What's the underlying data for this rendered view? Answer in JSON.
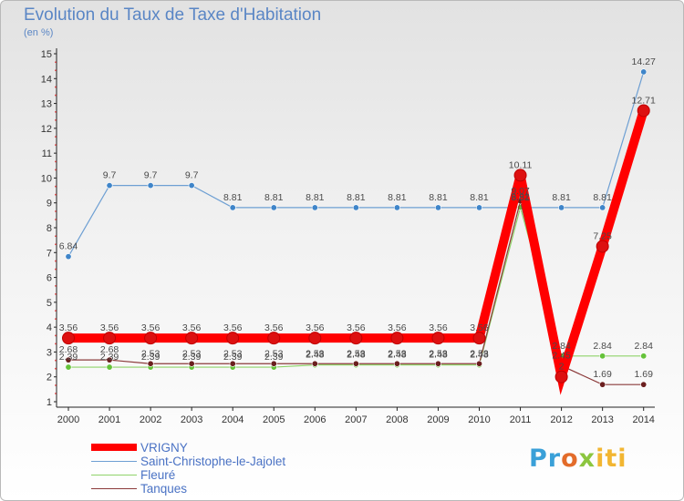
{
  "chart_data": {
    "type": "line",
    "title": "Evolution du Taux de Taxe d'Habitation",
    "unit_label": "(en %)",
    "categories": [
      "2000",
      "2001",
      "2002",
      "2003",
      "2004",
      "2005",
      "2006",
      "2007",
      "2008",
      "2009",
      "2010",
      "2011",
      "2012",
      "2013",
      "2014"
    ],
    "ylim": [
      1,
      15
    ],
    "yticks": [
      1,
      2,
      3,
      4,
      5,
      6,
      7,
      8,
      9,
      10,
      11,
      12,
      13,
      14,
      15
    ],
    "grid": false,
    "legend_position": "bottom-left",
    "series": [
      {
        "name": "VRIGNY",
        "color": "#ff0000",
        "marker_color": "#dd1010",
        "values": [
          3.56,
          3.56,
          3.56,
          3.56,
          3.56,
          3.56,
          3.56,
          3.56,
          3.56,
          3.56,
          3.56,
          10.11,
          2.0,
          7.25,
          12.71
        ],
        "labels": [
          "3.56",
          "3.56",
          "3.56",
          "3.56",
          "3.56",
          "3.56",
          "3.56",
          "3.56",
          "3.56",
          "3.56",
          "3.56",
          "10.11",
          "2",
          "7.25",
          "12.71"
        ]
      },
      {
        "name": "Saint-Christophe-le-Jajolet",
        "color": "#6d9fd3",
        "marker_color": "#3f85c9",
        "values": [
          6.84,
          9.7,
          9.7,
          9.7,
          8.81,
          8.81,
          8.81,
          8.81,
          8.81,
          8.81,
          8.81,
          8.81,
          8.81,
          8.81,
          14.27
        ],
        "labels": [
          "6.84",
          "9.7",
          "9.7",
          "9.7",
          "8.81",
          "8.81",
          "8.81",
          "8.81",
          "8.81",
          "8.81",
          "8.81",
          "8.81",
          "8.81",
          "8.81",
          "14.27"
        ]
      },
      {
        "name": "Fleuré",
        "color": "#8fd36a",
        "marker_color": "#65c23a",
        "values": [
          2.39,
          2.39,
          2.39,
          2.39,
          2.39,
          2.39,
          2.48,
          2.48,
          2.48,
          2.48,
          2.48,
          8.82,
          2.84,
          2.84,
          2.84
        ],
        "labels": [
          "2.39",
          "2.39",
          "2.39",
          "2.39",
          "2.39",
          "2.39",
          "2.48",
          "2.48",
          "2.48",
          "2.48",
          "2.48",
          "8.82",
          "2.84",
          "2.84",
          "2.84"
        ]
      },
      {
        "name": "Tanques",
        "color": "#8b3a3a",
        "marker_color": "#6b1f1f",
        "values": [
          2.68,
          2.68,
          2.53,
          2.53,
          2.53,
          2.53,
          2.53,
          2.53,
          2.53,
          2.53,
          2.53,
          9.07,
          2.45,
          1.69,
          1.69
        ],
        "labels": [
          "2.68",
          "2.68",
          "2.53",
          "2.53",
          "2.53",
          "2.53",
          "2.53",
          "2.53",
          "2.53",
          "2.53",
          "2.53",
          "9.07",
          "2.45",
          "1.69",
          "1.69"
        ]
      }
    ]
  },
  "logo": {
    "parts": [
      "Pr",
      "o",
      "x",
      "iti"
    ]
  }
}
